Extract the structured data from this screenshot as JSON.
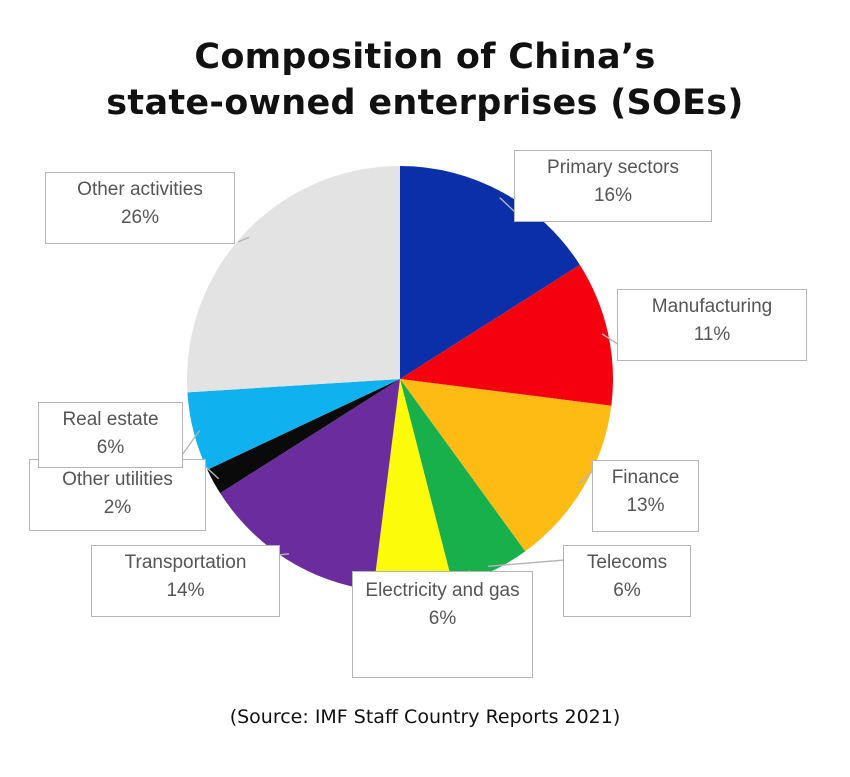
{
  "title_line1": "Composition of China’s",
  "title_line2": "state-owned enterprises (SOEs)",
  "source": "(Source: IMF Staff Country Reports 2021)",
  "chart_data": {
    "type": "pie",
    "title": "Composition of China’s state-owned enterprises (SOEs)",
    "unit": "%",
    "slices": [
      {
        "label": "Primary sectors",
        "value": 16,
        "display": "16%",
        "color": "#0b2fa8"
      },
      {
        "label": "Manufacturing",
        "value": 11,
        "display": "11%",
        "color": "#f5000f"
      },
      {
        "label": "Finance",
        "value": 13,
        "display": "13%",
        "color": "#fdbb14"
      },
      {
        "label": "Telecoms",
        "value": 6,
        "display": "6%",
        "color": "#18b04a"
      },
      {
        "label": "Electricity and gas",
        "value": 6,
        "display": "6%",
        "color": "#fbfb0a"
      },
      {
        "label": "Transportation",
        "value": 14,
        "display": "14%",
        "color": "#6b2d9e"
      },
      {
        "label": "Other utilities",
        "value": 2,
        "display": "2%",
        "color": "#0a0a0a"
      },
      {
        "label": "Real estate",
        "value": 6,
        "display": "6%",
        "color": "#0fb2ee"
      },
      {
        "label": "Other activities",
        "value": 26,
        "display": "26%",
        "color": "#e3e3e3"
      }
    ]
  }
}
